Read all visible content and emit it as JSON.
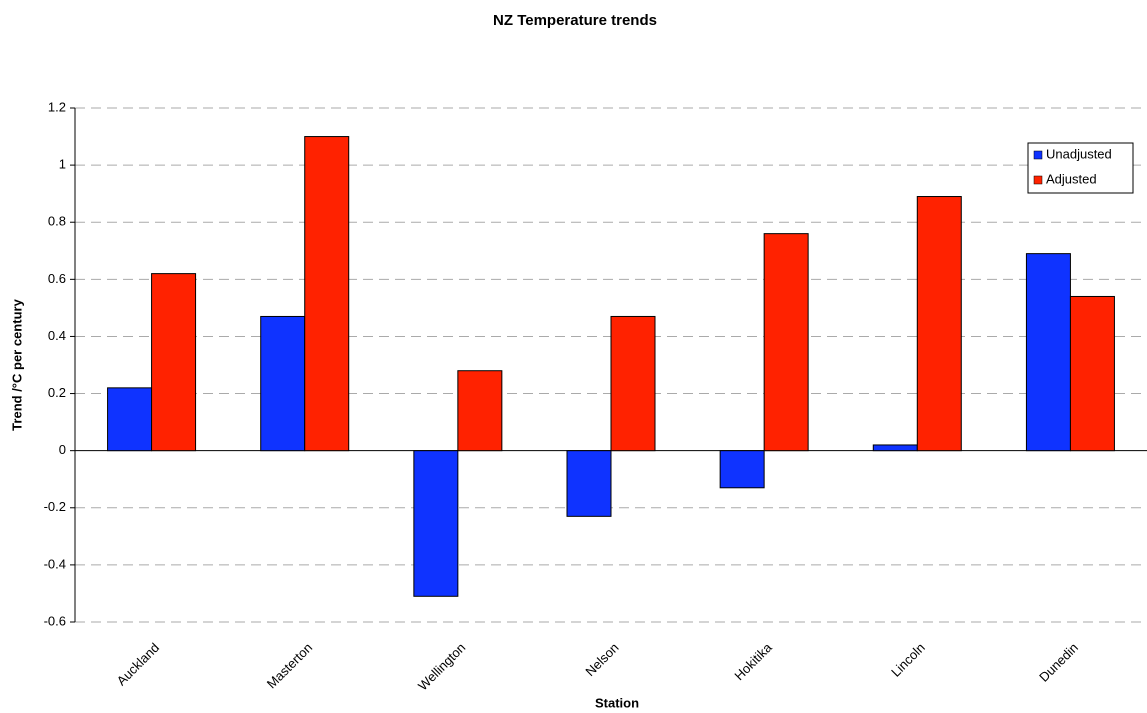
{
  "chart_data": {
    "type": "bar",
    "title": "NZ Temperature trends",
    "x_label": "Station",
    "y_label": "Trend /°C per century",
    "categories": [
      "Auckland",
      "Masterton",
      "Wellington",
      "Nelson",
      "Hokitika",
      "Lincoln",
      "Dunedin"
    ],
    "series": [
      {
        "name": "Unadjusted",
        "color": "#0f33ff",
        "values": [
          0.22,
          0.47,
          -0.51,
          -0.23,
          -0.13,
          0.02,
          0.69
        ]
      },
      {
        "name": "Adjusted",
        "color": "#ff2200",
        "values": [
          0.62,
          1.1,
          0.28,
          0.47,
          0.76,
          0.89,
          0.54
        ]
      }
    ],
    "ylim": [
      -0.6,
      1.2
    ],
    "yticks": [
      -0.6,
      -0.4,
      -0.2,
      0,
      0.2,
      0.4,
      0.6,
      0.8,
      1,
      1.2
    ],
    "grid": true,
    "legend": "top-right"
  }
}
